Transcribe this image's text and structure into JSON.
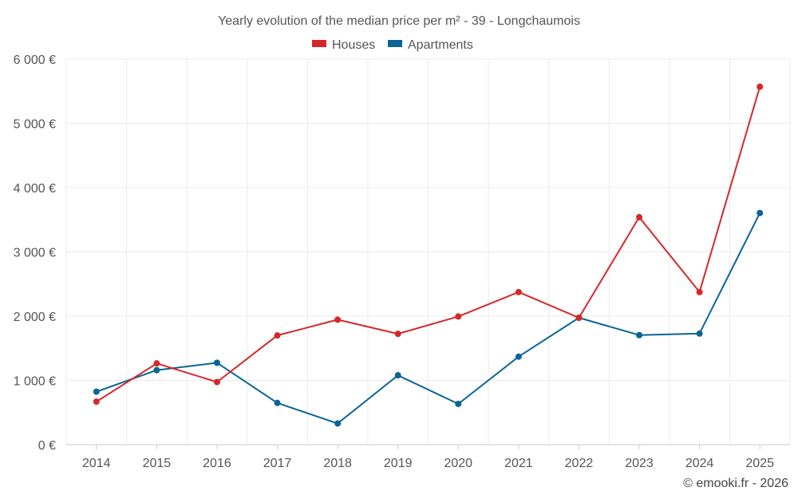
{
  "chart_data": {
    "type": "line",
    "title": "Yearly evolution of the median price per m² - 39 - Longchaumois",
    "xlabel": "",
    "ylabel": "",
    "categories": [
      "2014",
      "2015",
      "2016",
      "2017",
      "2018",
      "2019",
      "2020",
      "2021",
      "2022",
      "2023",
      "2024",
      "2025"
    ],
    "ylim": [
      0,
      6000
    ],
    "yticks": [
      {
        "value": 0,
        "label": "0 €"
      },
      {
        "value": 1000,
        "label": "1 000 €"
      },
      {
        "value": 2000,
        "label": "2 000 €"
      },
      {
        "value": 3000,
        "label": "3 000 €"
      },
      {
        "value": 4000,
        "label": "4 000 €"
      },
      {
        "value": 5000,
        "label": "5 000 €"
      },
      {
        "value": 6000,
        "label": "6 000 €"
      }
    ],
    "grid": true,
    "legend_position": "top-center",
    "series": [
      {
        "name": "Houses",
        "color": "#d62728",
        "values": [
          670,
          1265,
          975,
          1700,
          1945,
          1725,
          1995,
          2375,
          1975,
          3540,
          2375,
          5570
        ]
      },
      {
        "name": "Apartments",
        "color": "#0a6496",
        "values": [
          825,
          1160,
          1275,
          650,
          330,
          1080,
          635,
          1370,
          1975,
          1705,
          1730,
          3605
        ]
      }
    ]
  },
  "credit": "© emooki.fr - 2026"
}
